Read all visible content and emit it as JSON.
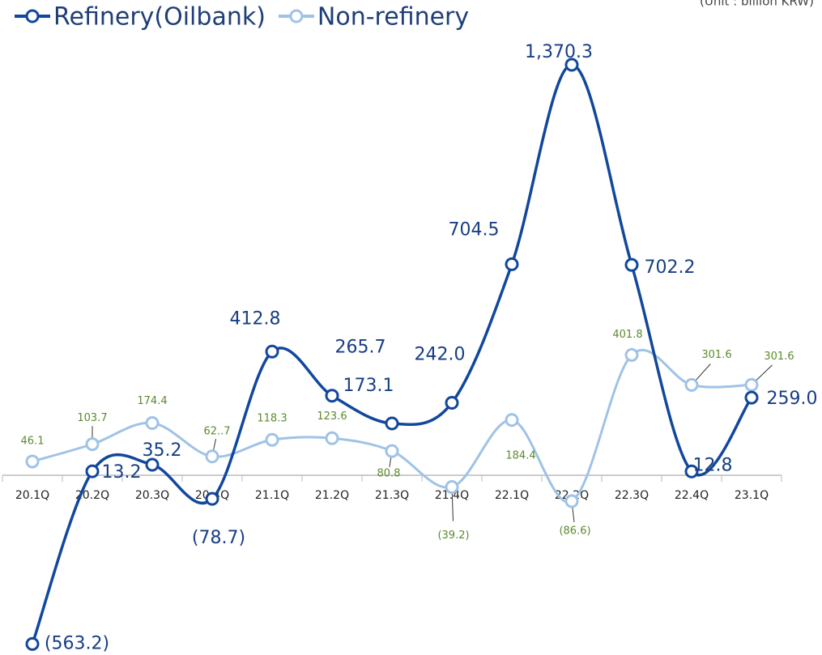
{
  "chart_data": {
    "type": "line",
    "unit_note": "(Unit : billion KRW)",
    "categories": [
      "20.1Q",
      "20.2Q",
      "20.3Q",
      "20.4Q",
      "21.1Q",
      "21.2Q",
      "21.3Q",
      "21.4Q",
      "22.1Q",
      "22.2Q",
      "22.3Q",
      "22.4Q",
      "23.1Q"
    ],
    "series": [
      {
        "name": "Refinery(Oilbank)",
        "color": "#11479c",
        "values": [
          -563.2,
          13.2,
          35.2,
          -78.7,
          412.8,
          265.7,
          173.1,
          242.0,
          704.5,
          1370.3,
          702.2,
          12.8,
          259.0
        ],
        "value_labels": [
          "(563.2)",
          "13.2",
          "35.2",
          "(78.7)",
          "412.8",
          "265.7",
          "173.1",
          "242.0",
          "704.5",
          "1,370.3",
          "702.2",
          "12.8",
          "259.0"
        ]
      },
      {
        "name": "Non-refinery",
        "color": "#9fc3e6",
        "values": [
          46.1,
          103.7,
          174.4,
          62.7,
          118.3,
          123.6,
          80.8,
          -39.2,
          184.4,
          -86.6,
          401.8,
          301.6,
          301.6
        ],
        "value_labels": [
          "46.1",
          "103.7",
          "174.4",
          "62..7",
          "118.3",
          "123.6",
          "80.8",
          "(39.2)",
          "184.4",
          "(86.6)",
          "401.8",
          "301.6",
          "301.6"
        ]
      }
    ],
    "ylim": [
      -600,
      1400
    ]
  }
}
